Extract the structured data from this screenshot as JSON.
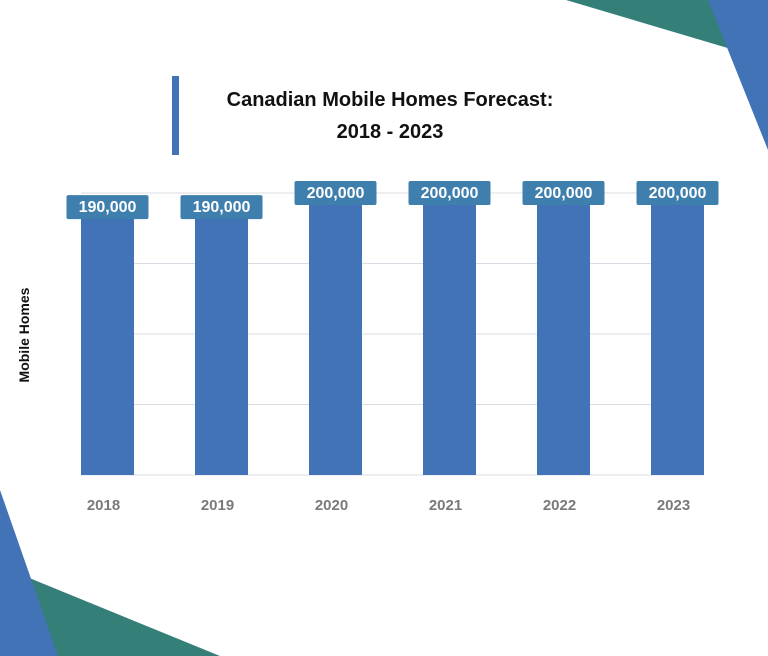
{
  "chart_data": {
    "type": "bar",
    "title_line1": "Canadian Mobile Homes Forecast:",
    "title_line2": "2018 - 2023",
    "ylabel": "Mobile Homes",
    "categories": [
      "2018",
      "2019",
      "2020",
      "2021",
      "2022",
      "2023"
    ],
    "values": [
      190000,
      190000,
      200000,
      200000,
      200000,
      200000
    ],
    "data_labels": [
      "190,000",
      "190,000",
      "200,000",
      "200,000",
      "200,000",
      "200,000"
    ],
    "ylim": [
      0,
      200000
    ],
    "grid": true,
    "legend": "none"
  },
  "colors": {
    "bar": "#4273b6",
    "label_bg": "#3f7fae",
    "label_text": "#ffffff",
    "tick_text": "#7a7a7a",
    "grid": "#d9dde3",
    "corner_blue": "#4273b6",
    "corner_teal": "#347f78"
  }
}
